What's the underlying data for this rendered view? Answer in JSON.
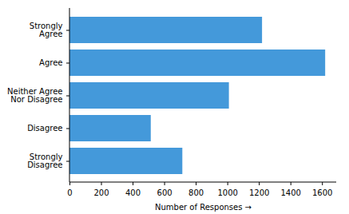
{
  "chart_data": {
    "type": "bar",
    "orientation": "horizontal",
    "categories": [
      "Strongly\nAgree",
      "Agree",
      "Neither Agree\nNor Disagree",
      "Disagree",
      "Strongly\nDisagree"
    ],
    "values": [
      1220,
      1620,
      1010,
      515,
      715
    ],
    "color": "#4499da",
    "xlabel": "Number of Responses",
    "xlim": [
      0,
      1690
    ],
    "xticks": [
      0,
      200,
      400,
      600,
      800,
      1000,
      1200,
      1400,
      1600
    ],
    "grid": false
  }
}
